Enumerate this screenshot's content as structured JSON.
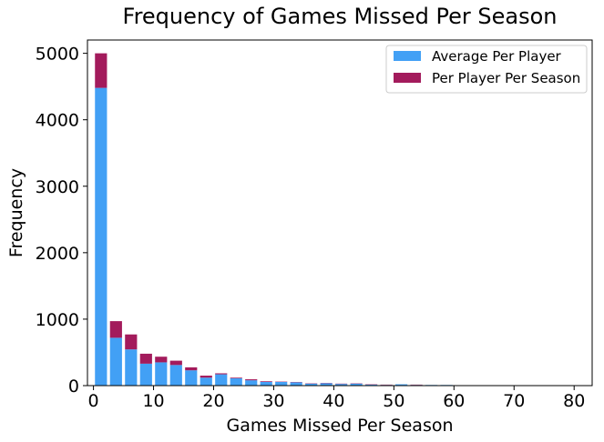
{
  "chart_data": {
    "type": "bar",
    "title": "Frequency of Games Missed Per Season",
    "xlabel": "Games Missed Per Season",
    "ylabel": "Frequency",
    "xlim": [
      -1,
      83
    ],
    "ylim": [
      0,
      5200
    ],
    "xticks": [
      0,
      10,
      20,
      30,
      40,
      50,
      60,
      70,
      80
    ],
    "yticks": [
      0,
      1000,
      2000,
      3000,
      4000,
      5000
    ],
    "bin_width": 2.5,
    "stacked": true,
    "legend": "top-right",
    "grid": false,
    "series": [
      {
        "name": "Average Per Player",
        "color": "#42a0f5",
        "x": [
          1.25,
          3.75,
          6.25,
          8.75,
          11.25,
          13.75,
          16.25,
          18.75,
          21.25,
          23.75,
          26.25,
          28.75,
          31.25,
          33.75,
          36.25,
          38.75,
          41.25,
          43.75,
          46.25,
          48.75,
          51.25,
          53.75,
          56.25,
          58.75,
          61.25,
          63.75,
          66.25,
          68.75,
          71.25,
          73.75,
          76.25,
          78.75,
          81.25
        ],
        "values": [
          4480,
          720,
          545,
          330,
          350,
          310,
          230,
          120,
          170,
          110,
          80,
          55,
          55,
          50,
          30,
          35,
          25,
          30,
          15,
          10,
          20,
          10,
          10,
          10,
          5,
          5,
          5,
          5,
          5,
          5,
          5,
          5,
          5
        ]
      },
      {
        "name": "Per Player Per Season",
        "color": "#a31b5c",
        "x": [
          1.25,
          3.75,
          6.25,
          8.75,
          11.25,
          13.75,
          16.25,
          18.75,
          21.25,
          23.75,
          26.25,
          28.75,
          31.25,
          33.75,
          36.25,
          38.75,
          41.25,
          43.75,
          46.25,
          48.75,
          51.25,
          53.75,
          56.25,
          58.75,
          61.25,
          63.75,
          66.25,
          68.75,
          71.25,
          73.75,
          76.25,
          78.75,
          81.25
        ],
        "values": [
          520,
          250,
          225,
          150,
          85,
          65,
          45,
          30,
          15,
          10,
          15,
          10,
          5,
          5,
          5,
          5,
          5,
          5,
          5,
          5,
          0,
          5,
          0,
          0,
          0,
          0,
          0,
          0,
          0,
          0,
          0,
          0,
          0
        ]
      }
    ]
  }
}
